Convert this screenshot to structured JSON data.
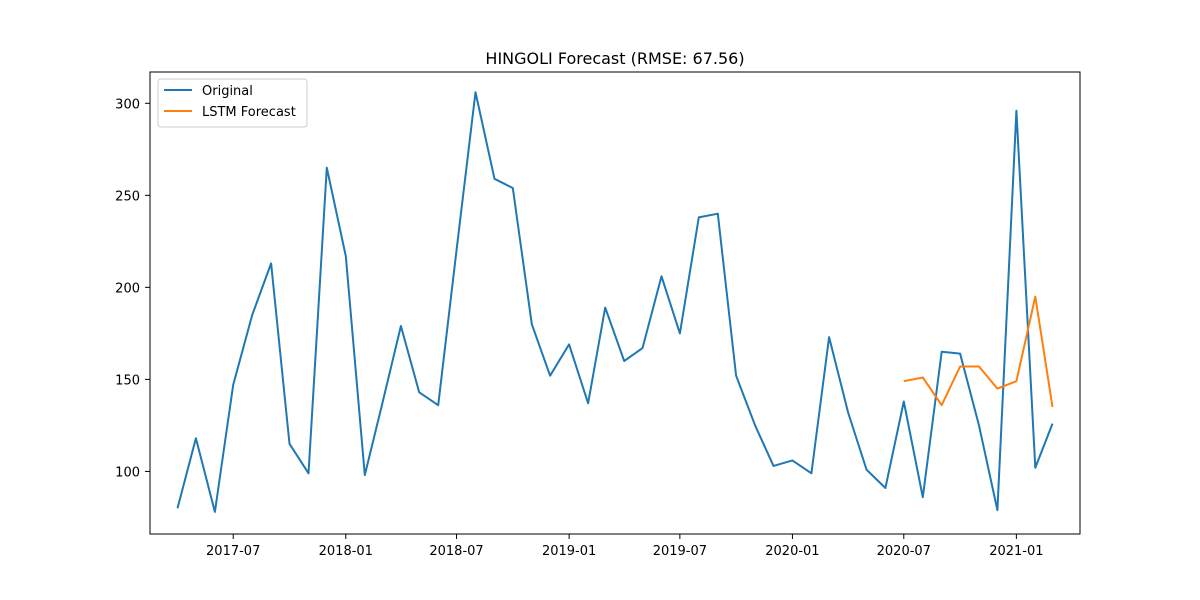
{
  "chart_data": {
    "type": "line",
    "title": "HINGOLI Forecast (RMSE: 67.56)",
    "xlabel": "",
    "ylabel": "",
    "x_axis_type": "date",
    "xlim": [
      "2017-02-15",
      "2021-04-15"
    ],
    "ylim": [
      66,
      317
    ],
    "x_ticks": [
      "2017-07",
      "2018-01",
      "2018-07",
      "2019-01",
      "2019-07",
      "2020-01",
      "2020-07",
      "2021-01"
    ],
    "y_ticks": [
      100,
      150,
      200,
      250,
      300
    ],
    "grid": false,
    "legend_position": "top-left",
    "series": [
      {
        "name": "Original",
        "color": "#1f77b4",
        "x": [
          "2017-04",
          "2017-05",
          "2017-06",
          "2017-07",
          "2017-08",
          "2017-09",
          "2017-10",
          "2017-11",
          "2017-12",
          "2018-01",
          "2018-02",
          "2018-03",
          "2018-04",
          "2018-05",
          "2018-06",
          "2018-07",
          "2018-08",
          "2018-09",
          "2018-10",
          "2018-11",
          "2018-12",
          "2019-01",
          "2019-02",
          "2019-03",
          "2019-04",
          "2019-05",
          "2019-06",
          "2019-07",
          "2019-08",
          "2019-09",
          "2019-10",
          "2019-11",
          "2019-12",
          "2020-01",
          "2020-02",
          "2020-03",
          "2020-04",
          "2020-05",
          "2020-06",
          "2020-07",
          "2020-08",
          "2020-09",
          "2020-10",
          "2020-11",
          "2020-12",
          "2021-01",
          "2021-02",
          "2021-03"
        ],
        "y": [
          80,
          118,
          78,
          147,
          185,
          213,
          115,
          99,
          265,
          217,
          98,
          136,
          179,
          143,
          136,
          220,
          306,
          259,
          254,
          180,
          152,
          169,
          137,
          189,
          160,
          167,
          206,
          175,
          238,
          240,
          152,
          125,
          103,
          106,
          99,
          173,
          132,
          101,
          91,
          138,
          86,
          165,
          164,
          125,
          79,
          296,
          102,
          126
        ]
      },
      {
        "name": "LSTM Forecast",
        "color": "#ff7f0e",
        "x": [
          "2020-07",
          "2020-08",
          "2020-09",
          "2020-10",
          "2020-11",
          "2020-12",
          "2021-01",
          "2021-02",
          "2021-03"
        ],
        "y": [
          149,
          151,
          136,
          157,
          157,
          145,
          149,
          195,
          135
        ]
      }
    ]
  }
}
